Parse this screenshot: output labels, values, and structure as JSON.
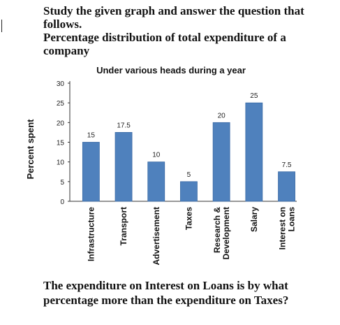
{
  "intro": {
    "line1": "Study the given graph and answer the question that follows.",
    "line2": "Percentage distribution of total expenditure of a company"
  },
  "question": "The expenditure on Interest on Loans is by what percentage more than the expenditure on Taxes?",
  "colors": {
    "bar": "#4f81bd",
    "bar_edge": "#3a6aa5"
  },
  "chart_data": {
    "type": "bar",
    "title": "Under various heads during a year",
    "ylabel": "Percent spent",
    "xlabel": "",
    "ylim": [
      0,
      30
    ],
    "yticks": [
      0,
      5,
      10,
      15,
      20,
      25,
      30
    ],
    "categories": [
      "Infrastructure",
      "Transport",
      "Advertisement",
      "Taxes",
      "Research & Development",
      "Salary",
      "Interest on Loans"
    ],
    "values": [
      15,
      17.5,
      10,
      5,
      20,
      25,
      7.5
    ],
    "value_labels": [
      "15",
      "17.5",
      "10",
      "5",
      "20",
      "25",
      "7.5"
    ],
    "grid": false,
    "legend": "none"
  }
}
